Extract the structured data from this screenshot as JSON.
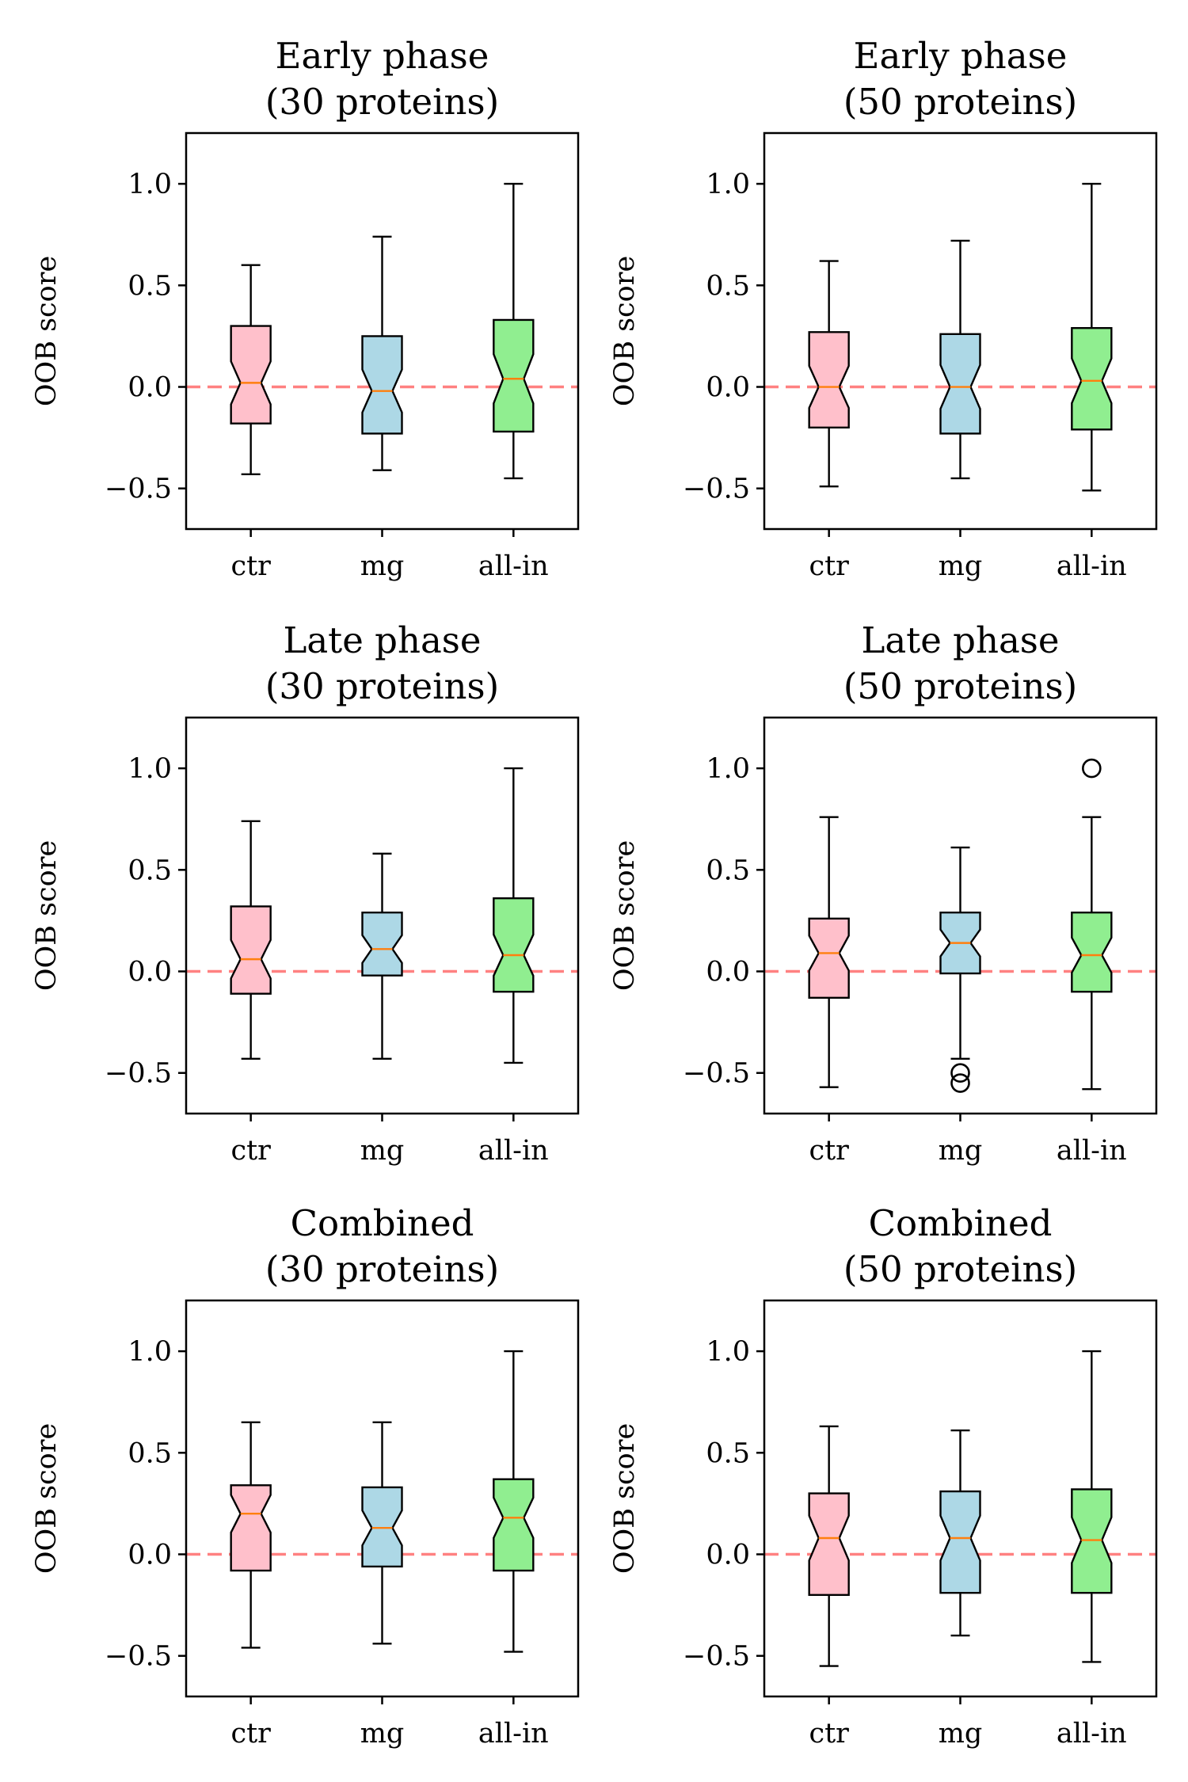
{
  "chart_data": [
    {
      "type": "boxplot",
      "title": "Early phase\n(30 proteins)",
      "ylabel": "OOB score",
      "ylim": [
        -0.7,
        1.25
      ],
      "yticks": [
        -0.5,
        0.0,
        0.5,
        1.0
      ],
      "ytick_labels": [
        "−0.5",
        "0.0",
        "0.5",
        "1.0"
      ],
      "reference_line": 0.0,
      "categories": [
        "ctr",
        "mg",
        "all-in"
      ],
      "boxes": [
        {
          "whislo": -0.43,
          "q1": -0.18,
          "med": 0.02,
          "q3": 0.3,
          "whishi": 0.6,
          "fliers": []
        },
        {
          "whislo": -0.41,
          "q1": -0.23,
          "med": -0.02,
          "q3": 0.25,
          "whishi": 0.74,
          "fliers": []
        },
        {
          "whislo": -0.45,
          "q1": -0.22,
          "med": 0.04,
          "q3": 0.33,
          "whishi": 1.0,
          "fliers": []
        }
      ]
    },
    {
      "type": "boxplot",
      "title": "Early phase\n(50 proteins)",
      "ylabel": "OOB score",
      "ylim": [
        -0.7,
        1.25
      ],
      "yticks": [
        -0.5,
        0.0,
        0.5,
        1.0
      ],
      "ytick_labels": [
        "−0.5",
        "0.0",
        "0.5",
        "1.0"
      ],
      "reference_line": 0.0,
      "categories": [
        "ctr",
        "mg",
        "all-in"
      ],
      "boxes": [
        {
          "whislo": -0.49,
          "q1": -0.2,
          "med": 0.0,
          "q3": 0.27,
          "whishi": 0.62,
          "fliers": []
        },
        {
          "whislo": -0.45,
          "q1": -0.23,
          "med": 0.0,
          "q3": 0.26,
          "whishi": 0.72,
          "fliers": []
        },
        {
          "whislo": -0.51,
          "q1": -0.21,
          "med": 0.03,
          "q3": 0.29,
          "whishi": 1.0,
          "fliers": []
        }
      ]
    },
    {
      "type": "boxplot",
      "title": "Late phase\n(30 proteins)",
      "ylabel": "OOB score",
      "ylim": [
        -0.7,
        1.25
      ],
      "yticks": [
        -0.5,
        0.0,
        0.5,
        1.0
      ],
      "ytick_labels": [
        "−0.5",
        "0.0",
        "0.5",
        "1.0"
      ],
      "reference_line": 0.0,
      "categories": [
        "ctr",
        "mg",
        "all-in"
      ],
      "boxes": [
        {
          "whislo": -0.43,
          "q1": -0.11,
          "med": 0.06,
          "q3": 0.32,
          "whishi": 0.74,
          "fliers": []
        },
        {
          "whislo": -0.43,
          "q1": -0.02,
          "med": 0.11,
          "q3": 0.29,
          "whishi": 0.58,
          "fliers": []
        },
        {
          "whislo": -0.45,
          "q1": -0.1,
          "med": 0.08,
          "q3": 0.36,
          "whishi": 1.0,
          "fliers": []
        }
      ]
    },
    {
      "type": "boxplot",
      "title": "Late phase\n(50 proteins)",
      "ylabel": "OOB score",
      "ylim": [
        -0.7,
        1.25
      ],
      "yticks": [
        -0.5,
        0.0,
        0.5,
        1.0
      ],
      "ytick_labels": [
        "−0.5",
        "0.0",
        "0.5",
        "1.0"
      ],
      "reference_line": 0.0,
      "categories": [
        "ctr",
        "mg",
        "all-in"
      ],
      "boxes": [
        {
          "whislo": -0.57,
          "q1": -0.13,
          "med": 0.09,
          "q3": 0.26,
          "whishi": 0.76,
          "fliers": []
        },
        {
          "whislo": -0.43,
          "q1": -0.01,
          "med": 0.14,
          "q3": 0.29,
          "whishi": 0.61,
          "fliers": [
            -0.5,
            -0.55
          ]
        },
        {
          "whislo": -0.58,
          "q1": -0.1,
          "med": 0.08,
          "q3": 0.29,
          "whishi": 0.76,
          "fliers": [
            1.0
          ]
        }
      ]
    },
    {
      "type": "boxplot",
      "title": "Combined\n(30 proteins)",
      "ylabel": "OOB score",
      "ylim": [
        -0.7,
        1.25
      ],
      "yticks": [
        -0.5,
        0.0,
        0.5,
        1.0
      ],
      "ytick_labels": [
        "−0.5",
        "0.0",
        "0.5",
        "1.0"
      ],
      "reference_line": 0.0,
      "categories": [
        "ctr",
        "mg",
        "all-in"
      ],
      "boxes": [
        {
          "whislo": -0.46,
          "q1": -0.08,
          "med": 0.2,
          "q3": 0.34,
          "whishi": 0.65,
          "fliers": []
        },
        {
          "whislo": -0.44,
          "q1": -0.06,
          "med": 0.13,
          "q3": 0.33,
          "whishi": 0.65,
          "fliers": []
        },
        {
          "whislo": -0.48,
          "q1": -0.08,
          "med": 0.18,
          "q3": 0.37,
          "whishi": 1.0,
          "fliers": []
        }
      ]
    },
    {
      "type": "boxplot",
      "title": "Combined\n(50 proteins)",
      "ylabel": "OOB score",
      "ylim": [
        -0.7,
        1.25
      ],
      "yticks": [
        -0.5,
        0.0,
        0.5,
        1.0
      ],
      "ytick_labels": [
        "−0.5",
        "0.0",
        "0.5",
        "1.0"
      ],
      "reference_line": 0.0,
      "categories": [
        "ctr",
        "mg",
        "all-in"
      ],
      "boxes": [
        {
          "whislo": -0.55,
          "q1": -0.2,
          "med": 0.08,
          "q3": 0.3,
          "whishi": 0.63,
          "fliers": []
        },
        {
          "whislo": -0.4,
          "q1": -0.19,
          "med": 0.08,
          "q3": 0.31,
          "whishi": 0.61,
          "fliers": []
        },
        {
          "whislo": -0.53,
          "q1": -0.19,
          "med": 0.07,
          "q3": 0.32,
          "whishi": 1.0,
          "fliers": []
        }
      ]
    }
  ],
  "colors": {
    "boxes": [
      "#ffc0cb",
      "#add8e6",
      "#90ee90"
    ],
    "median": "#ff7f0e",
    "reference_line": "#ff6b6b",
    "axes": "#000000"
  }
}
